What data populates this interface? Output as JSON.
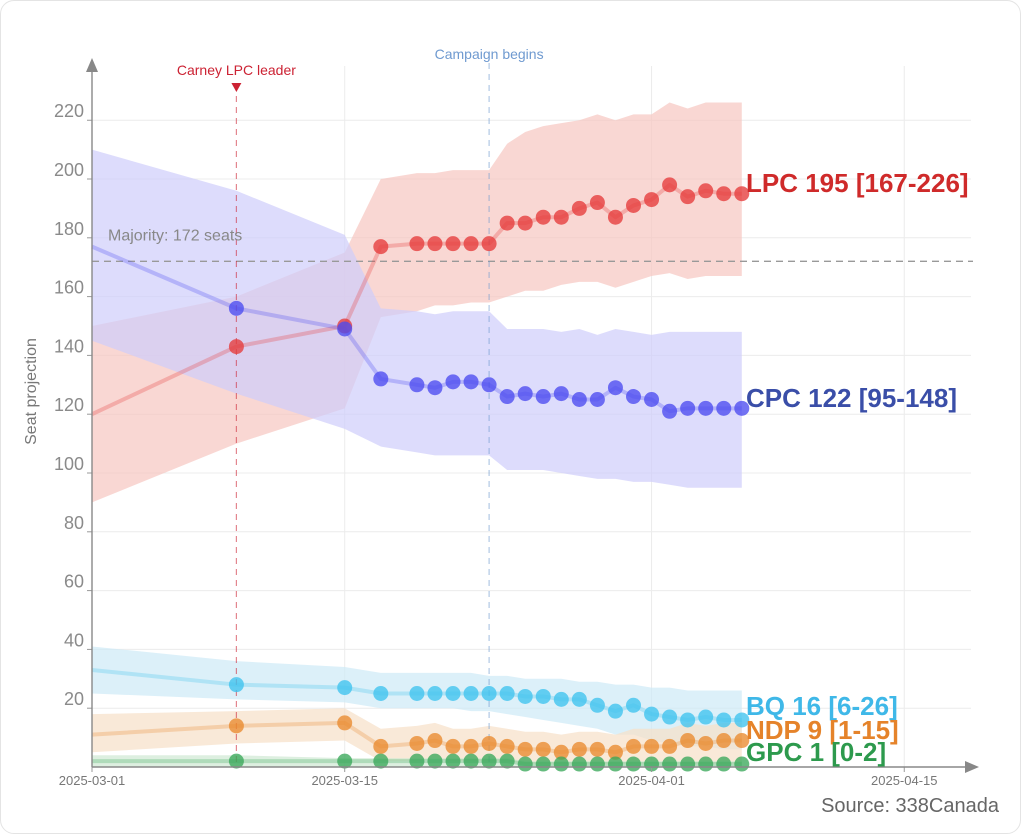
{
  "chart_data": {
    "type": "line",
    "ylabel": "Seat projection",
    "ylim": [
      0,
      235
    ],
    "xlim": [
      "2025-03-01",
      "2025-04-20"
    ],
    "yticks": [
      20,
      40,
      60,
      80,
      100,
      120,
      140,
      160,
      180,
      200,
      220
    ],
    "xticks": [
      "2025-03-01",
      "2025-03-15",
      "2025-04-01",
      "2025-04-15"
    ],
    "majority": {
      "value": 172,
      "label": "Majority: 172 seats"
    },
    "annotations": [
      {
        "date": "2025-03-09",
        "label": "Carney LPC leader",
        "color": "#cc2233"
      },
      {
        "date": "2025-03-23",
        "label": "Campaign begins",
        "color": "#6f9ad0"
      }
    ],
    "source": "Source: 338Canada",
    "x": [
      "2025-03-01",
      "2025-03-09",
      "2025-03-15",
      "2025-03-17",
      "2025-03-19",
      "2025-03-20",
      "2025-03-21",
      "2025-03-22",
      "2025-03-23",
      "2025-03-24",
      "2025-03-25",
      "2025-03-26",
      "2025-03-27",
      "2025-03-28",
      "2025-03-29",
      "2025-03-30",
      "2025-03-31",
      "2025-04-01",
      "2025-04-02",
      "2025-04-03",
      "2025-04-04",
      "2025-04-05",
      "2025-04-06"
    ],
    "series": [
      {
        "name": "LPC",
        "color": "#e53b3b",
        "band": "#f6c6c0",
        "end_label": "LPC 195 [167-226]",
        "values": [
          120,
          143,
          150,
          177,
          178,
          178,
          178,
          178,
          178,
          185,
          185,
          187,
          187,
          190,
          192,
          187,
          191,
          193,
          198,
          194,
          196,
          195,
          195
        ],
        "low": [
          90,
          110,
          122,
          153,
          155,
          157,
          157,
          158,
          158,
          160,
          162,
          162,
          164,
          165,
          165,
          163,
          165,
          167,
          168,
          166,
          167,
          167,
          167
        ],
        "high": [
          150,
          160,
          175,
          200,
          202,
          202,
          203,
          203,
          203,
          212,
          216,
          218,
          219,
          220,
          222,
          220,
          222,
          222,
          226,
          224,
          226,
          226,
          226
        ]
      },
      {
        "name": "CPC",
        "color": "#4b4bef",
        "band": "#cfcdfb",
        "end_label": "CPC 122 [95-148]",
        "values": [
          177,
          156,
          149,
          132,
          130,
          129,
          131,
          131,
          130,
          126,
          127,
          126,
          127,
          125,
          125,
          129,
          126,
          125,
          121,
          122,
          122,
          122,
          122
        ],
        "low": [
          145,
          127,
          115,
          109,
          107,
          106,
          106,
          106,
          106,
          101,
          101,
          101,
          100,
          99,
          98,
          98,
          97,
          97,
          96,
          95,
          95,
          95,
          95
        ],
        "high": [
          210,
          196,
          181,
          156,
          155,
          154,
          155,
          155,
          155,
          149,
          149,
          149,
          148,
          149,
          147,
          149,
          148,
          147,
          148,
          148,
          148,
          148,
          148
        ]
      },
      {
        "name": "BQ",
        "color": "#3fc3ee",
        "band": "#cdeaf7",
        "end_label": "BQ 16 [6-26]",
        "values": [
          33,
          28,
          27,
          25,
          25,
          25,
          25,
          25,
          25,
          25,
          24,
          24,
          23,
          23,
          21,
          19,
          21,
          18,
          17,
          16,
          17,
          16,
          16
        ],
        "low": [
          25,
          23,
          22,
          20,
          20,
          20,
          20,
          19,
          19,
          18,
          17,
          16,
          15,
          14,
          13,
          11,
          11,
          9,
          8,
          7,
          7,
          6,
          6
        ],
        "high": [
          41,
          36,
          34,
          32,
          32,
          32,
          32,
          32,
          31,
          31,
          30,
          30,
          30,
          29,
          29,
          28,
          28,
          27,
          27,
          26,
          26,
          26,
          26
        ]
      },
      {
        "name": "NDP",
        "color": "#e98a2e",
        "band": "#f7e0c8",
        "end_label": "NDP 9 [1-15]",
        "values": [
          11,
          14,
          15,
          7,
          8,
          9,
          7,
          7,
          8,
          7,
          6,
          6,
          5,
          6,
          6,
          5,
          7,
          7,
          7,
          9,
          8,
          9,
          9
        ],
        "low": [
          5,
          8,
          9,
          2,
          2,
          3,
          2,
          2,
          2,
          2,
          1,
          1,
          1,
          1,
          1,
          1,
          1,
          1,
          1,
          1,
          1,
          1,
          1
        ],
        "high": [
          18,
          19,
          20,
          13,
          14,
          15,
          13,
          13,
          14,
          13,
          12,
          12,
          11,
          12,
          12,
          11,
          13,
          13,
          13,
          15,
          14,
          15,
          15
        ]
      },
      {
        "name": "GPC",
        "color": "#3aa85a",
        "band": "#cfe8d3",
        "end_label": "GPC 1 [0-2]",
        "values": [
          2,
          2,
          2,
          2,
          2,
          2,
          2,
          2,
          2,
          2,
          1,
          1,
          1,
          1,
          1,
          1,
          1,
          1,
          1,
          1,
          1,
          1,
          1
        ],
        "low": [
          0,
          0,
          0,
          0,
          0,
          0,
          0,
          0,
          0,
          0,
          0,
          0,
          0,
          0,
          0,
          0,
          0,
          0,
          0,
          0,
          0,
          0,
          0
        ],
        "high": [
          4,
          4,
          3,
          3,
          3,
          3,
          3,
          3,
          3,
          3,
          2,
          2,
          2,
          2,
          2,
          2,
          2,
          2,
          2,
          2,
          2,
          2,
          2
        ]
      }
    ]
  }
}
